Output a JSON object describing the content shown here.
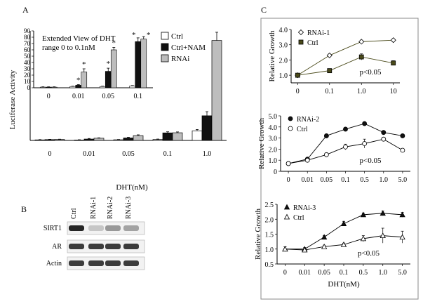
{
  "panel_labels": {
    "a": "A",
    "b": "B",
    "c": "C"
  },
  "chart_data": [
    {
      "id": "A_main",
      "type": "bar",
      "ylabel": "Luciferase Activity",
      "xlabel": "DHT(nM)",
      "ylim": [
        0,
        80
      ],
      "categories": [
        "0",
        "0.01",
        "0.05",
        "0.1",
        "1.0"
      ],
      "series": [
        {
          "name": "Ctrl",
          "color": "#ffffff",
          "values": [
            0.4,
            0.3,
            0.5,
            0.7,
            7
          ],
          "errors": [
            0.2,
            0.2,
            0.2,
            0.3,
            1
          ]
        },
        {
          "name": "Ctrl+NAM",
          "color": "#111111",
          "values": [
            0.6,
            1.0,
            1.8,
            5.5,
            18
          ],
          "errors": [
            0.2,
            0.4,
            0.5,
            0.8,
            3
          ]
        },
        {
          "name": "RNAi",
          "color": "#bdbdbd",
          "values": [
            0.7,
            1.6,
            3.5,
            5.6,
            73
          ],
          "errors": [
            0.2,
            0.3,
            0.6,
            0.6,
            6
          ]
        }
      ]
    },
    {
      "id": "A_inset",
      "type": "bar",
      "title": "Extended View of DHT range 0 to 0.1nM",
      "ylim": [
        0,
        90
      ],
      "yticks": [
        0,
        10,
        20,
        30,
        40,
        50,
        60,
        70,
        80,
        90
      ],
      "categories": [
        "0",
        "0.01",
        "0.05",
        "0.1"
      ],
      "series": [
        {
          "name": "Ctrl",
          "color": "#ffffff",
          "values": [
            1,
            2,
            2,
            3
          ],
          "errors": [
            0.5,
            0.5,
            0.5,
            0.5
          ]
        },
        {
          "name": "Ctrl+NAM",
          "color": "#111111",
          "values": [
            1,
            4,
            26,
            73
          ],
          "errors": [
            0.5,
            1,
            5,
            6
          ]
        },
        {
          "name": "RNAi",
          "color": "#bdbdbd",
          "values": [
            1,
            25,
            60,
            77
          ],
          "errors": [
            0.5,
            5,
            4,
            4
          ]
        }
      ],
      "annotations": [
        "*",
        "*",
        "*",
        "*",
        "*",
        "*"
      ]
    },
    {
      "id": "C_top",
      "type": "line",
      "ylabel": "Relative Growth",
      "ylim": [
        0.5,
        4.0
      ],
      "yticks": [
        "1.0",
        "2.0",
        "3.0",
        "4.0"
      ],
      "categories": [
        "0",
        "0.1",
        "1.0",
        "10"
      ],
      "series": [
        {
          "name": "RNAi-1",
          "marker": "diamond-open",
          "values": [
            1.0,
            2.3,
            3.2,
            3.3
          ],
          "errors": [
            0.05,
            0.08,
            0.1,
            0.08
          ]
        },
        {
          "name": "Ctrl",
          "marker": "square-filled",
          "values": [
            1.0,
            1.3,
            2.2,
            1.8
          ],
          "errors": [
            0.05,
            0.08,
            0.2,
            0.15
          ]
        }
      ],
      "annotation": "p<0.05"
    },
    {
      "id": "C_mid",
      "type": "line",
      "ylabel": "Relative Growth",
      "ylim": [
        0,
        5.0
      ],
      "yticks": [
        "0",
        "1.0",
        "2.0",
        "3.0",
        "4.0",
        "5.0"
      ],
      "categories": [
        "0",
        "0.01",
        "0.05",
        "0.1",
        "0.5",
        "1.0",
        "5.0"
      ],
      "series": [
        {
          "name": "RNAi-2",
          "marker": "circle-filled",
          "values": [
            0.7,
            1.1,
            3.2,
            3.8,
            4.3,
            3.5,
            3.2
          ],
          "errors": [
            0.05,
            0.08,
            0.1,
            0.12,
            0.1,
            0.1,
            0.12
          ]
        },
        {
          "name": "Ctrl",
          "marker": "circle-open",
          "values": [
            0.7,
            1.0,
            1.5,
            2.2,
            2.5,
            2.9,
            1.9
          ],
          "errors": [
            0.05,
            0.08,
            0.15,
            0.25,
            0.4,
            0.1,
            0.08
          ]
        }
      ],
      "annotation": "p<0.05"
    },
    {
      "id": "C_bot",
      "type": "line",
      "ylabel": "Relative Growth",
      "xlabel": "DHT(nM)",
      "ylim": [
        0.5,
        2.5
      ],
      "yticks": [
        "0.5",
        "1.0",
        "1.5",
        "2.0",
        "2.5"
      ],
      "categories": [
        "0",
        "0.01",
        "0.05",
        "0.1",
        "0.5",
        "1.0",
        "5.0"
      ],
      "series": [
        {
          "name": "RNAi-3",
          "marker": "triangle-filled",
          "values": [
            1.0,
            1.0,
            1.4,
            1.85,
            2.15,
            2.2,
            2.15
          ],
          "errors": [
            0.08,
            0.05,
            0.05,
            0.08,
            0.06,
            0.08,
            0.08
          ]
        },
        {
          "name": "Ctrl",
          "marker": "triangle-open",
          "values": [
            1.0,
            0.97,
            1.08,
            1.15,
            1.35,
            1.45,
            1.4
          ],
          "errors": [
            0.08,
            0.05,
            0.05,
            0.05,
            0.1,
            0.25,
            0.2
          ]
        }
      ],
      "annotation": "p<0.05"
    }
  ],
  "blot": {
    "lanes": [
      "Ctrl",
      "RNAi-1",
      "RNAi-2",
      "RNAi-3"
    ],
    "rows": [
      "SIRT1",
      "AR",
      "Actin"
    ]
  }
}
